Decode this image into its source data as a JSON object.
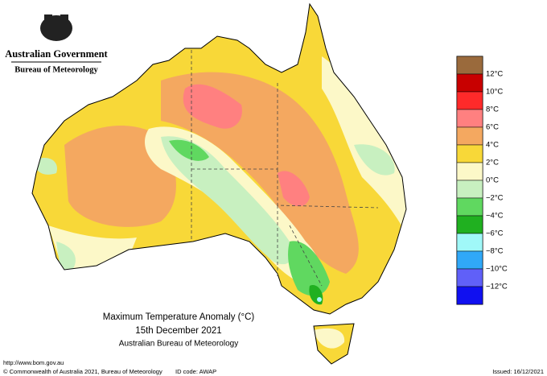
{
  "header": {
    "government": "Australian Government",
    "agency": "Bureau of Meteorology"
  },
  "caption": {
    "title": "Maximum Temperature Anomaly (°C)",
    "date": "15th December 2021",
    "source": "Australian Bureau of Meteorology"
  },
  "legend": {
    "colors": [
      "#9a6a3c",
      "#c80000",
      "#ff2a2a",
      "#ff8080",
      "#f4a860",
      "#f8d838",
      "#fcf8c8",
      "#c8f0c0",
      "#60d860",
      "#20b020",
      "#a0f8f8",
      "#30a8f8",
      "#6060f8",
      "#1010f0"
    ],
    "labels": [
      "12°C",
      "10°C",
      "8°C",
      "6°C",
      "4°C",
      "2°C",
      "0°C",
      "−2°C",
      "−4°C",
      "−6°C",
      "−8°C",
      "−10°C",
      "−12°C"
    ]
  },
  "footer": {
    "url": "http://www.bom.gov.au",
    "copyright": "© Commonwealth of Australia 2021, Bureau of Meteorology",
    "id_code": "ID code: AWAP",
    "issued": "Issued: 16/12/2021"
  }
}
